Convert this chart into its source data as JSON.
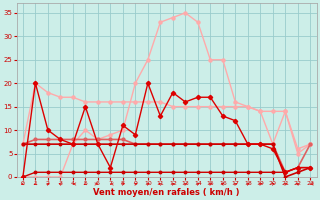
{
  "x": [
    0,
    1,
    2,
    3,
    4,
    5,
    6,
    7,
    8,
    9,
    10,
    11,
    12,
    13,
    14,
    15,
    16,
    17,
    18,
    19,
    20,
    21,
    22,
    23
  ],
  "line_pink_big": [
    0,
    0,
    0,
    0,
    7,
    10,
    8,
    9,
    10,
    20,
    25,
    33,
    34,
    35,
    33,
    25,
    25,
    16,
    15,
    14,
    7,
    14,
    5,
    7
  ],
  "line_pink_flat": [
    7,
    20,
    18,
    17,
    17,
    16,
    16,
    16,
    16,
    16,
    16,
    16,
    15,
    15,
    15,
    15,
    15,
    15,
    15,
    14,
    14,
    14,
    6,
    7
  ],
  "line_med_red_flat": [
    7,
    8,
    8,
    8,
    8,
    8,
    8,
    8,
    8,
    7,
    7,
    7,
    7,
    7,
    7,
    7,
    7,
    7,
    7,
    7,
    7,
    1,
    2,
    7
  ],
  "line_dark_flat": [
    7,
    7,
    7,
    7,
    7,
    7,
    7,
    7,
    7,
    7,
    7,
    7,
    7,
    7,
    7,
    7,
    7,
    7,
    7,
    7,
    7,
    0,
    1,
    2
  ],
  "line_spiky": [
    0,
    20,
    10,
    8,
    7,
    15,
    7,
    2,
    11,
    9,
    20,
    13,
    18,
    16,
    17,
    17,
    13,
    12,
    7,
    7,
    6,
    1,
    2,
    2
  ],
  "line_zero": [
    0,
    1,
    1,
    1,
    1,
    1,
    1,
    1,
    1,
    1,
    1,
    1,
    1,
    1,
    1,
    1,
    1,
    1,
    1,
    1,
    1,
    1,
    2,
    2
  ],
  "bg_color": "#cceee8",
  "grid_color": "#99cccc",
  "axis_color": "#cc0000",
  "xlabel": "Vent moyen/en rafales ( km/h )",
  "ylim": [
    0,
    37
  ],
  "xlim": [
    -0.5,
    23.5
  ],
  "yticks": [
    0,
    5,
    10,
    15,
    20,
    25,
    30,
    35
  ],
  "xticks": [
    0,
    1,
    2,
    3,
    4,
    5,
    6,
    7,
    8,
    9,
    10,
    11,
    12,
    13,
    14,
    15,
    16,
    17,
    18,
    19,
    20,
    21,
    22,
    23
  ]
}
